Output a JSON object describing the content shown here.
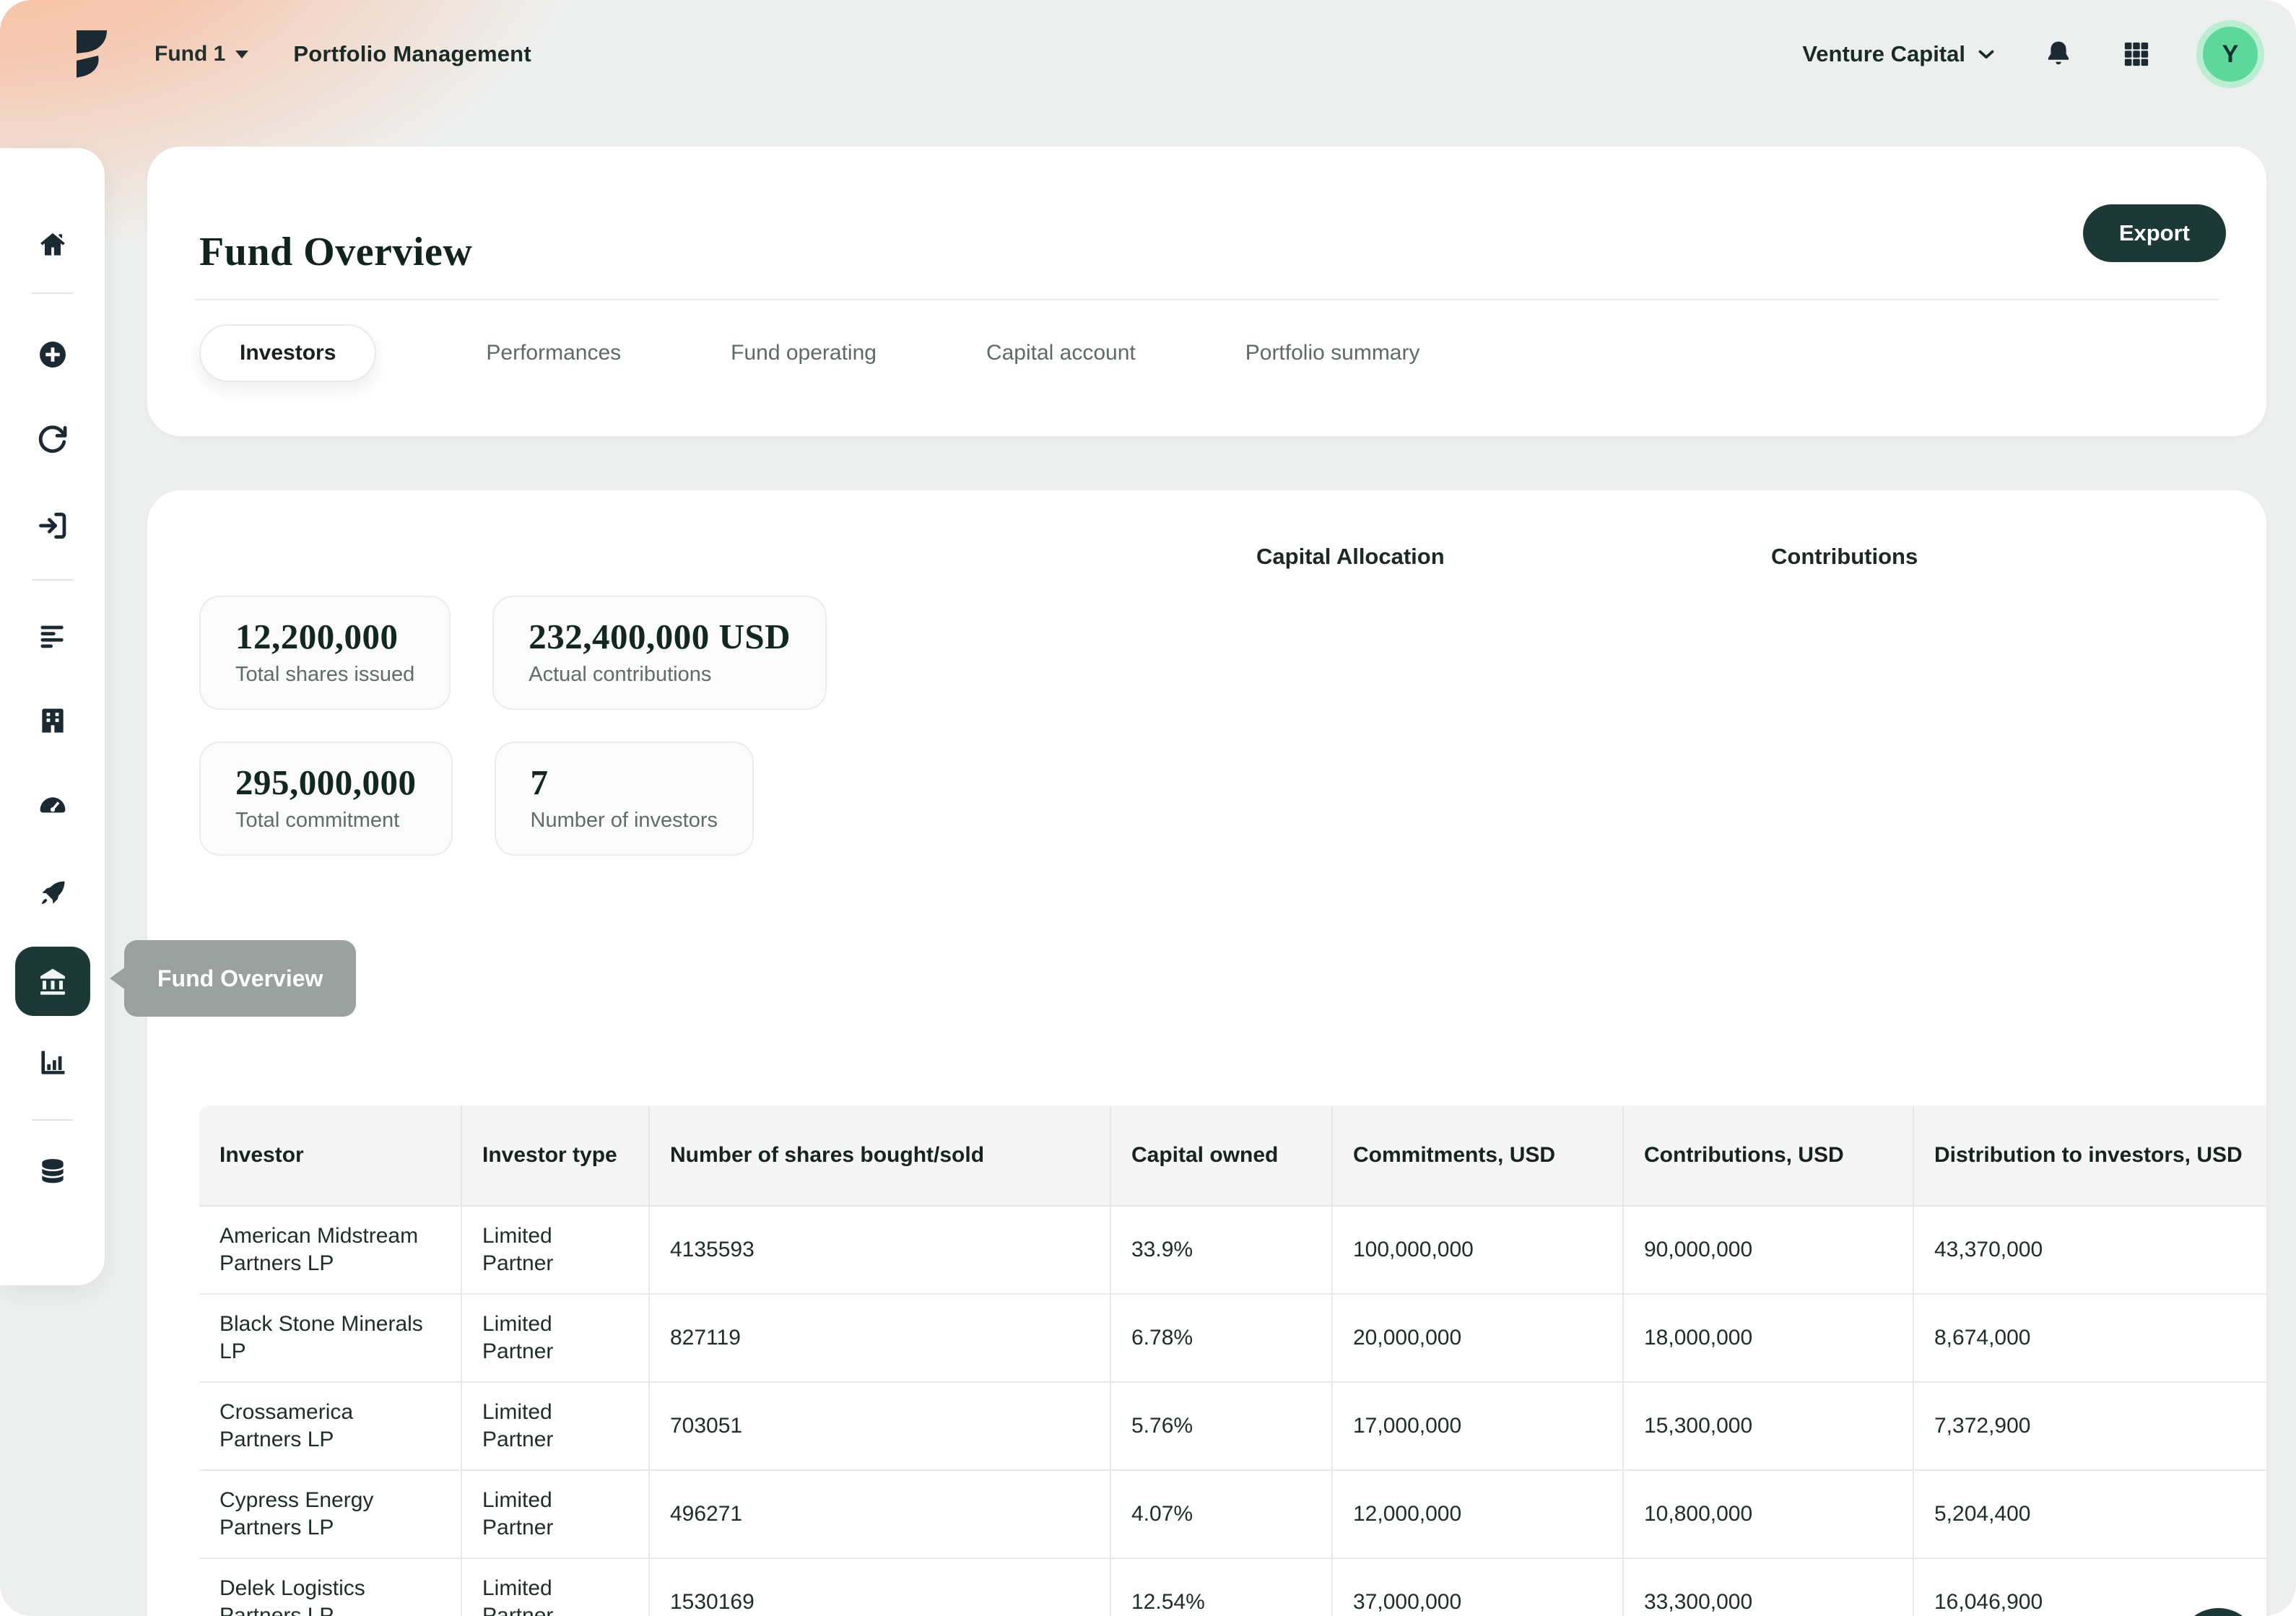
{
  "topbar": {
    "fund_selector": "Fund 1",
    "app_title": "Portfolio Management",
    "org_selector": "Venture Capital",
    "avatar_initial": "Y"
  },
  "sidebar": {
    "tooltip": "Fund Overview",
    "items": [
      {
        "icon": "home",
        "active": false
      },
      {
        "icon": "add-circle",
        "active": false
      },
      {
        "icon": "refresh",
        "active": false
      },
      {
        "icon": "sign-in",
        "active": false
      },
      {
        "icon": "list",
        "active": false
      },
      {
        "icon": "building",
        "active": false
      },
      {
        "icon": "gauge",
        "active": false
      },
      {
        "icon": "rocket",
        "active": false
      },
      {
        "icon": "bank",
        "active": true
      },
      {
        "icon": "bar-chart",
        "active": false
      },
      {
        "icon": "database",
        "active": false
      }
    ]
  },
  "page": {
    "title": "Fund Overview",
    "export_label": "Export",
    "tabs": [
      {
        "label": "Investors",
        "active": true
      },
      {
        "label": "Performances",
        "active": false
      },
      {
        "label": "Fund operating",
        "active": false
      },
      {
        "label": "Capital account",
        "active": false
      },
      {
        "label": "Portfolio summary",
        "active": false
      }
    ]
  },
  "charts": {
    "capital_allocation_title": "Capital Allocation",
    "contributions_title": "Contributions"
  },
  "stats": [
    {
      "value": "12,200,000",
      "label": "Total shares issued"
    },
    {
      "value": "232,400,000 USD",
      "label": "Actual contributions"
    },
    {
      "value": "295,000,000",
      "label": "Total commitment"
    },
    {
      "value": "7",
      "label": "Number of investors"
    }
  ],
  "table": {
    "columns": [
      "Investor",
      "Investor type",
      "Number of shares bought/sold",
      "Capital owned",
      "Commitments, USD",
      "Contributions, USD",
      "Distribution to investors, USD"
    ],
    "rows": [
      [
        "American Midstream Partners LP",
        "Limited Partner",
        "4135593",
        "33.9%",
        "100,000,000",
        "90,000,000",
        "43,370,000"
      ],
      [
        "Black Stone Minerals LP",
        "Limited Partner",
        "827119",
        "6.78%",
        "20,000,000",
        "18,000,000",
        "8,674,000"
      ],
      [
        "Crossamerica Partners LP",
        "Limited Partner",
        "703051",
        "5.76%",
        "17,000,000",
        "15,300,000",
        "7,372,900"
      ],
      [
        "Cypress Energy Partners LP",
        "Limited Partner",
        "496271",
        "4.07%",
        "12,000,000",
        "10,800,000",
        "5,204,400"
      ],
      [
        "Delek Logistics Partners LP",
        "Limited Partner",
        "1530169",
        "12.54%",
        "37,000,000",
        "33,300,000",
        "16,046,900"
      ]
    ]
  },
  "colors": {
    "accent_dark_teal": "#1c3936",
    "avatar_green": "#5ed79a",
    "avatar_ring_green": "#b9eed2",
    "peach_gradient": "#f7c0a4",
    "page_bg": "#edefee",
    "tooltip_gray": "#9aa19e",
    "table_header_bg": "#f4f5f4"
  }
}
